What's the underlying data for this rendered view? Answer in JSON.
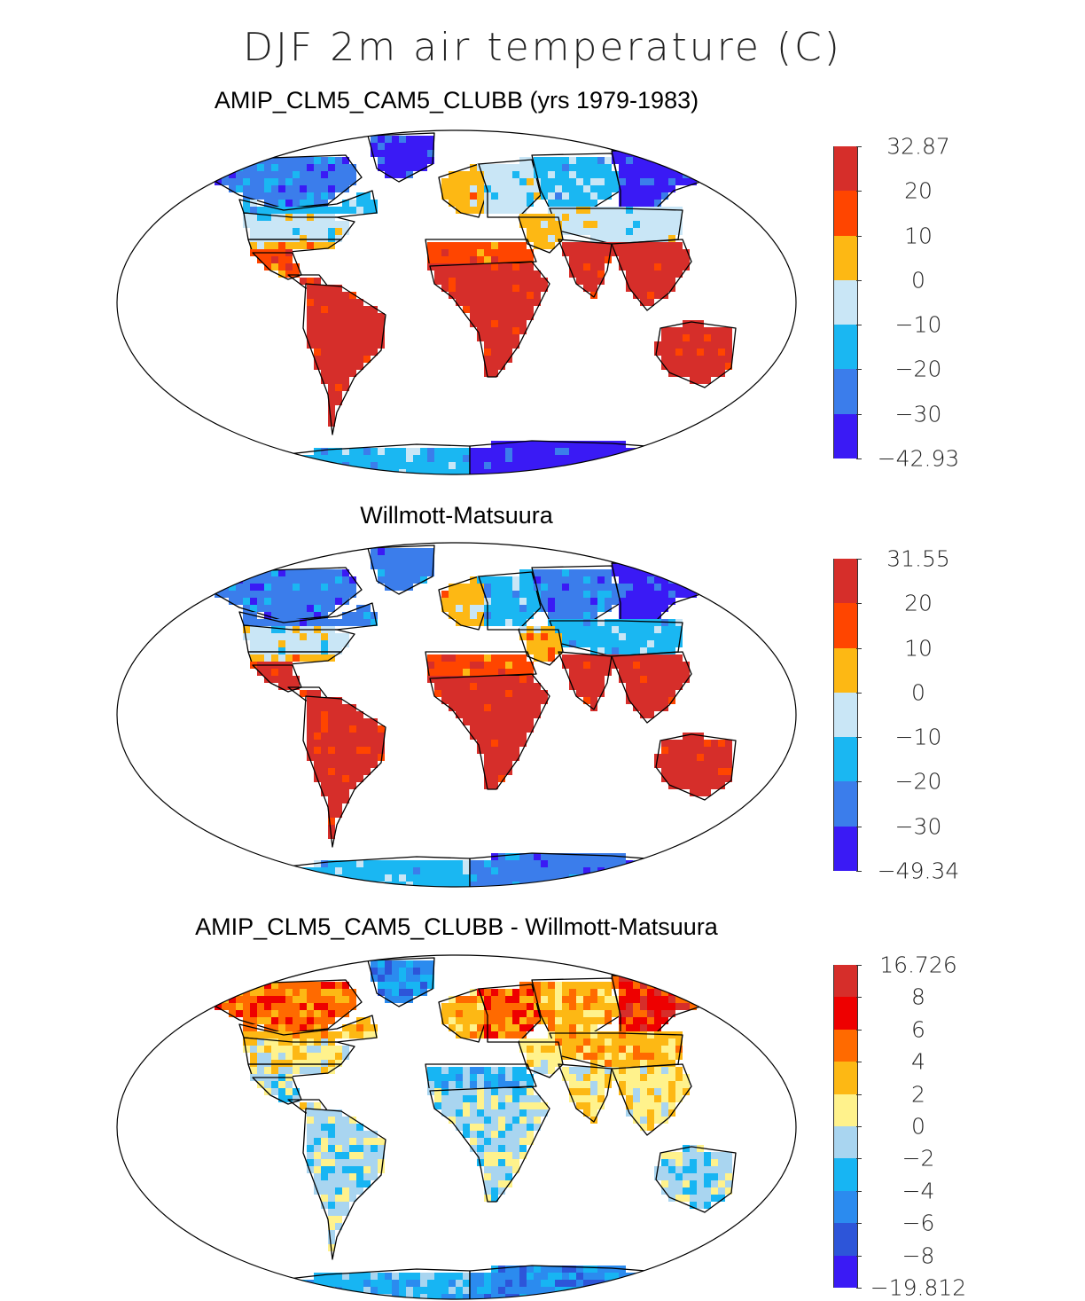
{
  "figure": {
    "title": "DJF 2m air temperature (C)"
  },
  "panels": [
    {
      "id": "model",
      "title": "AMIP_CLM5_CAM5_CLUBB (yrs 1979-1983)",
      "colorbar": {
        "labels": [
          "32.87",
          "20",
          "10",
          "0",
          "−10",
          "−20",
          "−30",
          "−42.93"
        ],
        "colors": [
          "#d62e2a",
          "#ff4500",
          "#fdb814",
          "#c9e6f6",
          "#1ab7f2",
          "#3b7deb",
          "#3a1af5"
        ]
      },
      "regions": [
        {
          "name": "arctic-canada",
          "cat": 5
        },
        {
          "name": "greenland",
          "cat": 6
        },
        {
          "name": "canada",
          "cat": 4
        },
        {
          "name": "usa-north",
          "cat": 3
        },
        {
          "name": "usa-south",
          "cat": 2
        },
        {
          "name": "mexico",
          "cat": 1
        },
        {
          "name": "central-america",
          "cat": 0
        },
        {
          "name": "south-america",
          "cat": 0
        },
        {
          "name": "europe-west",
          "cat": 2
        },
        {
          "name": "europe-east",
          "cat": 3
        },
        {
          "name": "siberia-west",
          "cat": 4
        },
        {
          "name": "siberia-east",
          "cat": 6
        },
        {
          "name": "central-asia",
          "cat": 3
        },
        {
          "name": "middle-east",
          "cat": 2
        },
        {
          "name": "north-africa",
          "cat": 1
        },
        {
          "name": "africa",
          "cat": 0
        },
        {
          "name": "india",
          "cat": 0
        },
        {
          "name": "southeast-asia",
          "cat": 0
        },
        {
          "name": "australia",
          "cat": 0
        },
        {
          "name": "antarctica-west",
          "cat": 4
        },
        {
          "name": "antarctica-east",
          "cat": 6
        }
      ]
    },
    {
      "id": "obs",
      "title": "Willmott-Matsuura",
      "colorbar": {
        "labels": [
          "31.55",
          "20",
          "10",
          "0",
          "−10",
          "−20",
          "−30",
          "−49.34"
        ],
        "colors": [
          "#d62e2a",
          "#ff4500",
          "#fdb814",
          "#c9e6f6",
          "#1ab7f2",
          "#3b7deb",
          "#3a1af5"
        ]
      },
      "regions": [
        {
          "name": "arctic-canada",
          "cat": 5
        },
        {
          "name": "greenland",
          "cat": 5
        },
        {
          "name": "canada",
          "cat": 5
        },
        {
          "name": "usa-north",
          "cat": 3
        },
        {
          "name": "usa-south",
          "cat": 2
        },
        {
          "name": "mexico",
          "cat": 0
        },
        {
          "name": "central-america",
          "cat": 0
        },
        {
          "name": "south-america",
          "cat": 0
        },
        {
          "name": "europe-west",
          "cat": 2
        },
        {
          "name": "europe-east",
          "cat": 4
        },
        {
          "name": "siberia-west",
          "cat": 5
        },
        {
          "name": "siberia-east",
          "cat": 6
        },
        {
          "name": "central-asia",
          "cat": 4
        },
        {
          "name": "middle-east",
          "cat": 2
        },
        {
          "name": "north-africa",
          "cat": 1
        },
        {
          "name": "africa",
          "cat": 0
        },
        {
          "name": "india",
          "cat": 0
        },
        {
          "name": "southeast-asia",
          "cat": 0
        },
        {
          "name": "australia",
          "cat": 0
        },
        {
          "name": "antarctica-west",
          "cat": 4
        },
        {
          "name": "antarctica-east",
          "cat": 5
        }
      ]
    },
    {
      "id": "diff",
      "title": "AMIP_CLM5_CAM5_CLUBB - Willmott-Matsuura",
      "colorbar": {
        "labels": [
          "16.726",
          "8",
          "6",
          "4",
          "2",
          "0",
          "−2",
          "−4",
          "−6",
          "−8",
          "−19.812"
        ],
        "colors": [
          "#d62e2a",
          "#ee0000",
          "#ff6a00",
          "#fdb814",
          "#fff28c",
          "#a9d5f0",
          "#17b5f3",
          "#2b8bef",
          "#2d55d9",
          "#3a1af5"
        ]
      },
      "regions": [
        {
          "name": "arctic-canada",
          "cat": 2
        },
        {
          "name": "greenland",
          "cat": 7
        },
        {
          "name": "canada",
          "cat": 3
        },
        {
          "name": "usa-north",
          "cat": 4
        },
        {
          "name": "usa-south",
          "cat": 4
        },
        {
          "name": "mexico",
          "cat": 5
        },
        {
          "name": "central-america",
          "cat": 4
        },
        {
          "name": "south-america",
          "cat": 5
        },
        {
          "name": "europe-west",
          "cat": 3
        },
        {
          "name": "europe-east",
          "cat": 2
        },
        {
          "name": "siberia-west",
          "cat": 3
        },
        {
          "name": "siberia-east",
          "cat": 1
        },
        {
          "name": "central-asia",
          "cat": 3
        },
        {
          "name": "middle-east",
          "cat": 4
        },
        {
          "name": "north-africa",
          "cat": 6
        },
        {
          "name": "africa",
          "cat": 5
        },
        {
          "name": "india",
          "cat": 4
        },
        {
          "name": "southeast-asia",
          "cat": 4
        },
        {
          "name": "australia",
          "cat": 5
        },
        {
          "name": "antarctica-west",
          "cat": 6
        },
        {
          "name": "antarctica-east",
          "cat": 7
        }
      ]
    }
  ]
}
